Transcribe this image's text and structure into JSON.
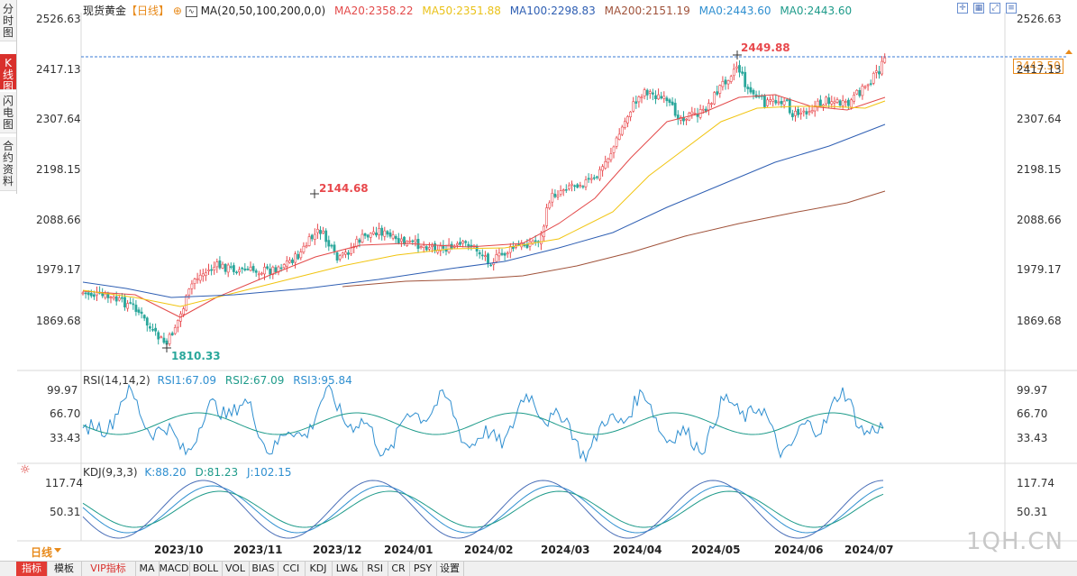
{
  "side_tabs": [
    {
      "label": "分时图",
      "active": false
    },
    {
      "label": "K线图",
      "active": true
    },
    {
      "label": "闪电图",
      "active": false
    },
    {
      "label": "合约资料",
      "active": false
    }
  ],
  "header": {
    "title": "现货黄金",
    "period": "【日线】",
    "add_icon": "circle-plus-icon",
    "ma_label": "MA(20,50,100,200,0,0)",
    "ma20": "MA20:2358.22",
    "ma50": "MA50:2351.88",
    "ma100": "MA100:2298.83",
    "ma200": "MA200:2151.19",
    "ma0a": "MA0:2443.60",
    "ma0b": "MA0:2443.60"
  },
  "colors": {
    "up": "#e8484c",
    "down": "#2aa79b",
    "ma20": "#e34a4a",
    "ma50": "#f1c40f",
    "ma100": "#2f5fb3",
    "ma200": "#a0523a",
    "ma0": "#1e9b8a"
  },
  "toolbar_icons": [
    "crosshair-icon",
    "grid-icon",
    "expand-icon",
    "settings-icon"
  ],
  "price_axis": {
    "labels": [
      "2526.63",
      "2417.13",
      "2307.64",
      "2198.15",
      "2088.66",
      "1979.17",
      "1869.68"
    ]
  },
  "annotations": {
    "high": "2449.88",
    "peak_mid": "2144.68",
    "low": "1810.33",
    "last_price": "2443.50"
  },
  "rsi": {
    "label": "RSI(14,14,2)",
    "rsi1": "RSI1:67.09",
    "rsi2": "RSI2:67.09",
    "rsi3": "RSI3:95.84",
    "axis": [
      "99.97",
      "66.70",
      "33.43"
    ]
  },
  "kdj": {
    "label": "KDJ(9,3,3)",
    "k": "K:88.20",
    "d": "D:81.23",
    "j": "J:102.15",
    "axis": [
      "117.74",
      "50.31"
    ],
    "icon": "sun-settings-icon"
  },
  "dates": [
    "2023/10",
    "2023/11",
    "2023/12",
    "2024/01",
    "2024/02",
    "2024/03",
    "2024/04",
    "2024/05",
    "2024/06",
    "2024/07"
  ],
  "period_label": "日线",
  "bottom_tabs": [
    "指标",
    "模板",
    "VIP指标",
    "MA",
    "MACD",
    "BOLL",
    "VOL",
    "BIAS",
    "CCI",
    "KDJ",
    "LW&",
    "RSI",
    "CR",
    "PSY",
    "设置"
  ],
  "watermark": "1QH.CN"
}
